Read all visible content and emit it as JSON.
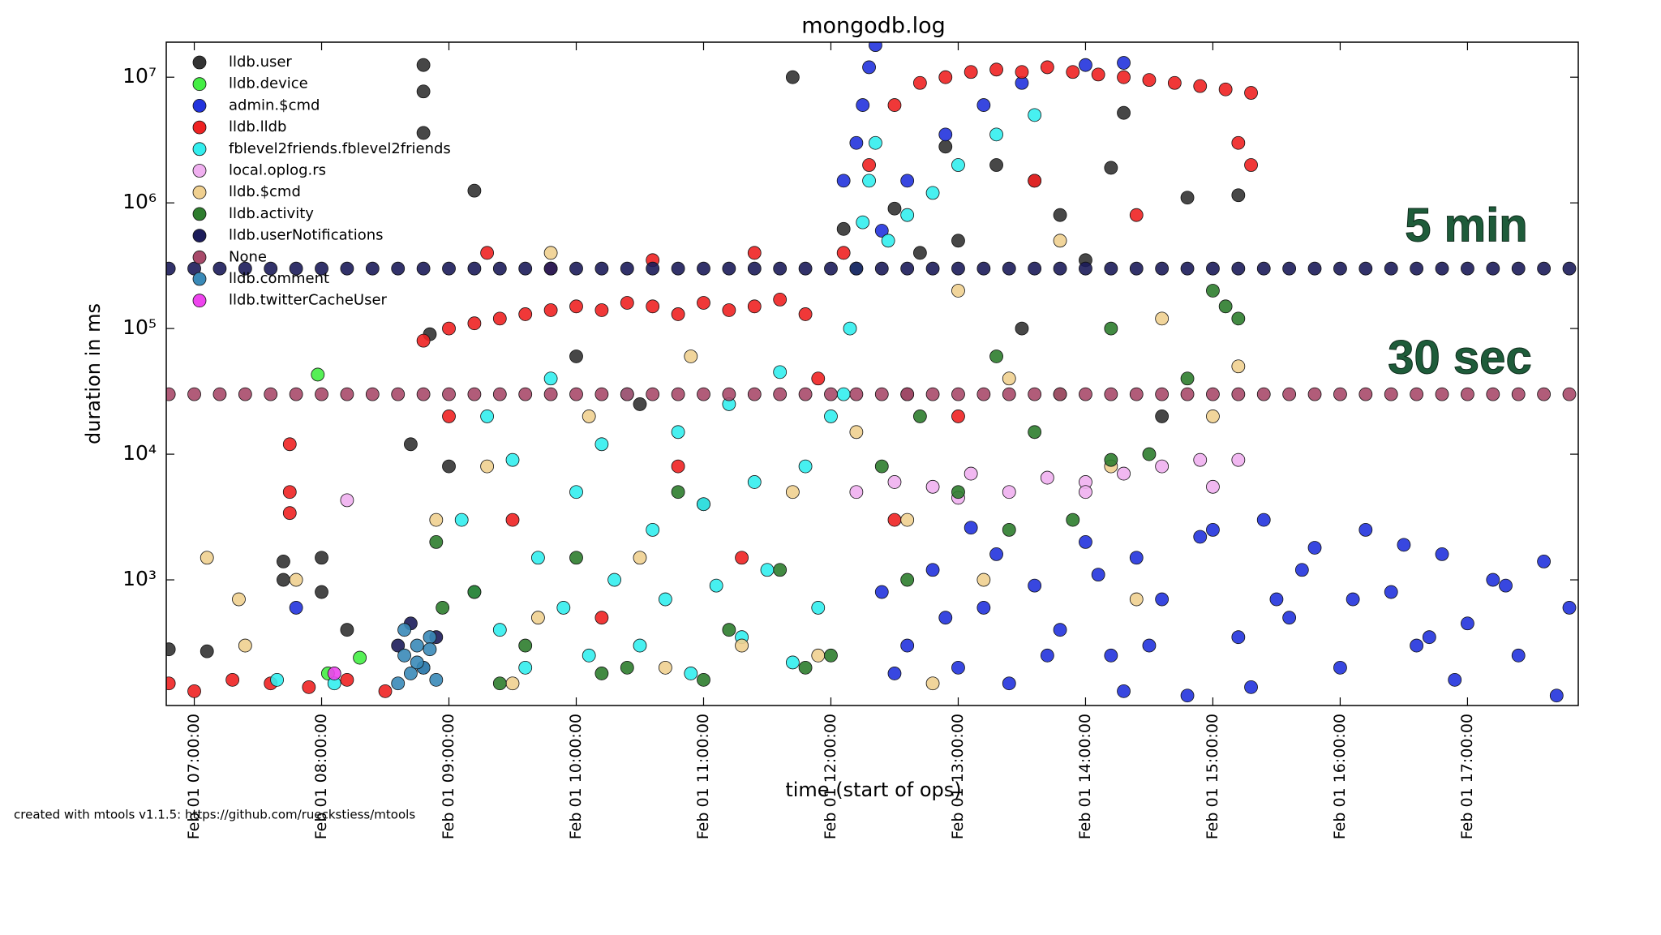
{
  "chart_data": {
    "type": "scatter",
    "title": "mongodb.log",
    "x_label": "time (start of ops)",
    "y_label": "duration in ms",
    "footer": "created with mtools v1.1.5: https://github.com/rueckstiess/mtools",
    "annotations": [
      "5 min",
      "30 sec"
    ],
    "log_y": true,
    "legend": "upper left",
    "xlim": [
      6.78,
      17.87
    ],
    "ylim": [
      100,
      19000000
    ],
    "xticks": [
      {
        "value": 7,
        "label": "Feb 01 07:00:00"
      },
      {
        "value": 8,
        "label": "Feb 01 08:00:00"
      },
      {
        "value": 9,
        "label": "Feb 01 09:00:00"
      },
      {
        "value": 10,
        "label": "Feb 01 10:00:00"
      },
      {
        "value": 11,
        "label": "Feb 01 11:00:00"
      },
      {
        "value": 12,
        "label": "Feb 01 12:00:00"
      },
      {
        "value": 13,
        "label": "Feb 01 13:00:00"
      },
      {
        "value": 14,
        "label": "Feb 01 14:00:00"
      },
      {
        "value": 15,
        "label": "Feb 01 15:00:00"
      },
      {
        "value": 16,
        "label": "Feb 01 16:00:00"
      },
      {
        "value": 17,
        "label": "Feb 01 17:00:00"
      }
    ],
    "yticks": [
      {
        "value": 1000,
        "label": "10³"
      },
      {
        "value": 10000,
        "label": "10⁴"
      },
      {
        "value": 100000,
        "label": "10⁵"
      },
      {
        "value": 1000000,
        "label": "10⁶"
      },
      {
        "value": 10000000,
        "label": "10⁷"
      }
    ],
    "series": [
      {
        "name": "lldb.user",
        "color": "#333333",
        "x": [
          6.8,
          7.1,
          8.8,
          8.8,
          8.8,
          9.2,
          11.7,
          12.1,
          8.85,
          12.5,
          12.9,
          13.3,
          13.6,
          14.2,
          14.3,
          14.8,
          15.2,
          13.0,
          12.7,
          13.8,
          7.7,
          7.7,
          8.0,
          8.0,
          8.2,
          9.0,
          10.0,
          11.0,
          12.6,
          13.5,
          14.6,
          8.7,
          10.5,
          14.0
        ],
        "y": [
          280,
          270,
          12500000,
          7700000,
          3600000,
          1250000,
          10000000,
          620000,
          90000,
          900000,
          2800000,
          2000000,
          1500000,
          1900000,
          5200000,
          1100000,
          1150000,
          500000,
          400000,
          800000,
          1400,
          1000,
          1500,
          800,
          400,
          8000,
          60000,
          4000,
          30000,
          100000,
          20000,
          12000,
          25000,
          350000
        ]
      },
      {
        "name": "lldb.device",
        "color": "#44ee44",
        "x": [
          7.97,
          8.3,
          8.05
        ],
        "y": [
          43000,
          240,
          180
        ]
      },
      {
        "name": "admin.$cmd",
        "color": "#2233dd",
        "x": [
          7.8,
          12.1,
          12.2,
          12.25,
          12.3,
          12.35,
          12.4,
          12.6,
          12.9,
          13.2,
          13.5,
          14.0,
          14.3,
          12.4,
          12.6,
          12.8,
          13.0,
          13.2,
          13.4,
          13.6,
          13.8,
          14.0,
          14.2,
          14.4,
          14.6,
          14.8,
          15.0,
          15.2,
          15.4,
          15.6,
          15.8,
          16.0,
          16.2,
          16.4,
          16.6,
          16.8,
          17.0,
          17.2,
          17.4,
          17.6,
          17.8,
          12.5,
          12.9,
          13.3,
          13.7,
          14.1,
          14.5,
          14.9,
          15.3,
          15.7,
          16.1,
          16.5,
          16.9,
          17.3,
          17.7,
          13.1,
          14.3,
          15.5,
          16.7
        ],
        "y": [
          600,
          1500000,
          3000000,
          6000000,
          12000000,
          18000000,
          600000,
          1500000,
          3500000,
          6000000,
          9000000,
          12500000,
          13000000,
          800,
          300,
          1200,
          200,
          600,
          150,
          900,
          400,
          2000,
          250,
          1500,
          700,
          120,
          2500,
          350,
          3000,
          500,
          1800,
          200,
          2500,
          800,
          300,
          1600,
          450,
          1000,
          250,
          1400,
          600,
          180,
          500,
          1600,
          250,
          1100,
          300,
          2200,
          140,
          1200,
          700,
          1900,
          160,
          900,
          120,
          2600,
          130,
          700,
          350
        ]
      },
      {
        "name": "lldb.lldb",
        "color": "#ee2222",
        "x": [
          6.8,
          7.0,
          7.3,
          7.6,
          7.9,
          8.2,
          8.5,
          8.8,
          9.0,
          9.2,
          9.4,
          9.6,
          9.8,
          10.0,
          10.2,
          10.4,
          10.6,
          10.8,
          11.0,
          11.2,
          11.4,
          11.6,
          11.8,
          12.1,
          12.3,
          12.5,
          12.7,
          12.9,
          13.1,
          13.3,
          13.5,
          13.7,
          13.9,
          14.1,
          14.3,
          14.5,
          14.7,
          14.9,
          15.1,
          15.3,
          7.75,
          7.75,
          7.75,
          9.0,
          9.5,
          10.2,
          10.8,
          11.3,
          11.9,
          12.5,
          13.0,
          13.6,
          14.4,
          15.2,
          15.3,
          9.3,
          9.8,
          10.6,
          11.4
        ],
        "y": [
          150,
          130,
          160,
          150,
          140,
          160,
          130,
          80000,
          100000,
          110000,
          120000,
          130000,
          140000,
          150000,
          140000,
          160000,
          150000,
          130000,
          160000,
          140000,
          150000,
          170000,
          130000,
          400000,
          2000000,
          6000000,
          9000000,
          10000000,
          11000000,
          11500000,
          11000000,
          12000000,
          11000000,
          10500000,
          10000000,
          9500000,
          9000000,
          8500000,
          8000000,
          7500000,
          12000,
          5000,
          3400,
          20000,
          3000,
          500,
          8000,
          1500,
          40000,
          3000,
          20000,
          1500000,
          800000,
          3000000,
          2000000,
          400000,
          300000,
          350000,
          400000
        ]
      },
      {
        "name": "fblevel2friends.fblevel2friends",
        "color": "#33eeee",
        "x": [
          9.1,
          9.2,
          9.3,
          9.4,
          9.5,
          9.6,
          9.7,
          9.8,
          9.9,
          10.0,
          10.1,
          10.2,
          10.3,
          10.4,
          10.5,
          10.6,
          10.7,
          10.8,
          10.9,
          11.0,
          11.1,
          11.2,
          11.3,
          11.4,
          11.5,
          11.6,
          11.7,
          11.8,
          11.9,
          12.0,
          12.1,
          12.15,
          12.2,
          12.25,
          12.3,
          12.35,
          12.45,
          12.6,
          12.8,
          13.0,
          13.3,
          13.6,
          7.65,
          8.1
        ],
        "y": [
          3000,
          800,
          20000,
          400,
          9000,
          200,
          1500,
          40000,
          600,
          5000,
          250,
          12000,
          1000,
          30000,
          300,
          2500,
          700,
          15000,
          180,
          4000,
          900,
          25000,
          350,
          6000,
          1200,
          45000,
          220,
          8000,
          600,
          20000,
          30000,
          100000,
          300000,
          700000,
          1500000,
          3000000,
          500000,
          800000,
          1200000,
          2000000,
          3500000,
          5000000,
          160,
          150
        ]
      },
      {
        "name": "local.oplog.rs",
        "color": "#f0b0f0",
        "x": [
          8.2,
          12.2,
          12.5,
          12.8,
          13.1,
          13.4,
          13.7,
          14.0,
          14.3,
          14.6,
          14.9,
          15.2,
          13.0,
          14.0,
          15.0
        ],
        "y": [
          4300,
          5000,
          6000,
          5500,
          7000,
          5000,
          6500,
          6000,
          7000,
          8000,
          9000,
          9000,
          4500,
          5000,
          5500
        ]
      },
      {
        "name": "lldb.$cmd",
        "color": "#f0d090",
        "x": [
          7.1,
          7.35,
          7.4,
          7.8,
          9.8,
          8.9,
          9.3,
          9.7,
          10.1,
          10.5,
          10.9,
          11.3,
          11.7,
          12.2,
          12.6,
          13.0,
          13.4,
          13.8,
          14.2,
          14.6,
          15.0,
          15.2,
          9.5,
          10.7,
          11.9,
          13.2,
          14.4,
          12.8
        ],
        "y": [
          1500,
          700,
          300,
          1000,
          400000,
          3000,
          8000,
          500,
          20000,
          1500,
          60000,
          300,
          5000,
          15000,
          3000,
          200000,
          40000,
          500000,
          8000,
          120000,
          20000,
          50000,
          150,
          200,
          250,
          1000,
          700,
          150
        ]
      },
      {
        "name": "lldb.activity",
        "color": "#2e7d2e",
        "x": [
          8.95,
          8.9,
          9.2,
          9.6,
          10.0,
          10.4,
          10.8,
          11.2,
          11.6,
          12.0,
          12.4,
          12.7,
          13.0,
          13.3,
          13.6,
          13.9,
          14.2,
          14.5,
          14.8,
          15.1,
          15.2,
          9.4,
          10.2,
          11.0,
          11.8,
          12.6,
          13.4,
          14.2,
          15.0,
          13.8
        ],
        "y": [
          600,
          2000,
          800,
          300,
          1500,
          200,
          5000,
          400,
          1200,
          250,
          8000,
          20000,
          5000,
          60000,
          15000,
          3000,
          100000,
          10000,
          40000,
          150000,
          120000,
          150,
          180,
          160,
          200,
          1000,
          2500,
          9000,
          200000,
          30000
        ]
      },
      {
        "name": "lldb.userNotifications",
        "color": "#1c1c5a",
        "x": [
          6.8,
          7.0,
          7.2,
          7.4,
          7.6,
          7.8,
          8.0,
          8.2,
          8.4,
          8.6,
          8.8,
          9.0,
          9.2,
          9.4,
          9.6,
          9.8,
          10.0,
          10.2,
          10.4,
          10.6,
          10.8,
          11.0,
          11.2,
          11.4,
          11.6,
          11.8,
          12.0,
          12.2,
          12.4,
          12.6,
          12.8,
          13.0,
          13.2,
          13.4,
          13.6,
          13.8,
          14.0,
          14.2,
          14.4,
          14.6,
          14.8,
          15.0,
          15.2,
          15.4,
          15.6,
          15.8,
          16.0,
          16.2,
          16.4,
          16.6,
          16.8,
          17.0,
          17.2,
          17.4,
          17.6,
          17.8,
          8.6,
          8.7,
          8.8,
          8.9
        ],
        "y": [
          300000,
          300000,
          300000,
          300000,
          300000,
          300000,
          300000,
          300000,
          300000,
          300000,
          300000,
          300000,
          300000,
          300000,
          300000,
          300000,
          300000,
          300000,
          300000,
          300000,
          300000,
          300000,
          300000,
          300000,
          300000,
          300000,
          300000,
          300000,
          300000,
          300000,
          300000,
          300000,
          300000,
          300000,
          300000,
          300000,
          300000,
          300000,
          300000,
          300000,
          300000,
          300000,
          300000,
          300000,
          300000,
          300000,
          300000,
          300000,
          300000,
          300000,
          300000,
          300000,
          300000,
          300000,
          300000,
          300000,
          300,
          450,
          200,
          350
        ]
      },
      {
        "name": "None",
        "color": "#a84a6a",
        "x": [
          6.8,
          7.0,
          7.2,
          7.4,
          7.6,
          7.8,
          8.0,
          8.2,
          8.4,
          8.6,
          8.8,
          9.0,
          9.2,
          9.4,
          9.6,
          9.8,
          10.0,
          10.2,
          10.4,
          10.6,
          10.8,
          11.0,
          11.2,
          11.4,
          11.6,
          11.8,
          12.0,
          12.2,
          12.4,
          12.6,
          12.8,
          13.0,
          13.2,
          13.4,
          13.6,
          13.8,
          14.0,
          14.2,
          14.4,
          14.6,
          14.8,
          15.0,
          15.2,
          15.4,
          15.6,
          15.8,
          16.0,
          16.2,
          16.4,
          16.6,
          16.8,
          17.0,
          17.2,
          17.4,
          17.6,
          17.8
        ],
        "y": [
          30000,
          30000,
          30000,
          30000,
          30000,
          30000,
          30000,
          30000,
          30000,
          30000,
          30000,
          30000,
          30000,
          30000,
          30000,
          30000,
          30000,
          30000,
          30000,
          30000,
          30000,
          30000,
          30000,
          30000,
          30000,
          30000,
          30000,
          30000,
          30000,
          30000,
          30000,
          30000,
          30000,
          30000,
          30000,
          30000,
          30000,
          30000,
          30000,
          30000,
          30000,
          30000,
          30000,
          30000,
          30000,
          30000,
          30000,
          30000,
          30000,
          30000,
          30000,
          30000,
          30000,
          30000,
          30000,
          30000
        ]
      },
      {
        "name": "lldb.comment",
        "color": "#3a8ab8",
        "x": [
          8.6,
          8.65,
          8.7,
          8.75,
          8.8,
          8.85,
          8.9,
          8.65,
          8.75,
          8.85
        ],
        "y": [
          150,
          250,
          180,
          300,
          200,
          350,
          160,
          400,
          220,
          280
        ]
      },
      {
        "name": "lldb.twitterCacheUser",
        "color": "#ee44ee",
        "x": [
          8.1
        ],
        "y": [
          180
        ]
      }
    ]
  }
}
